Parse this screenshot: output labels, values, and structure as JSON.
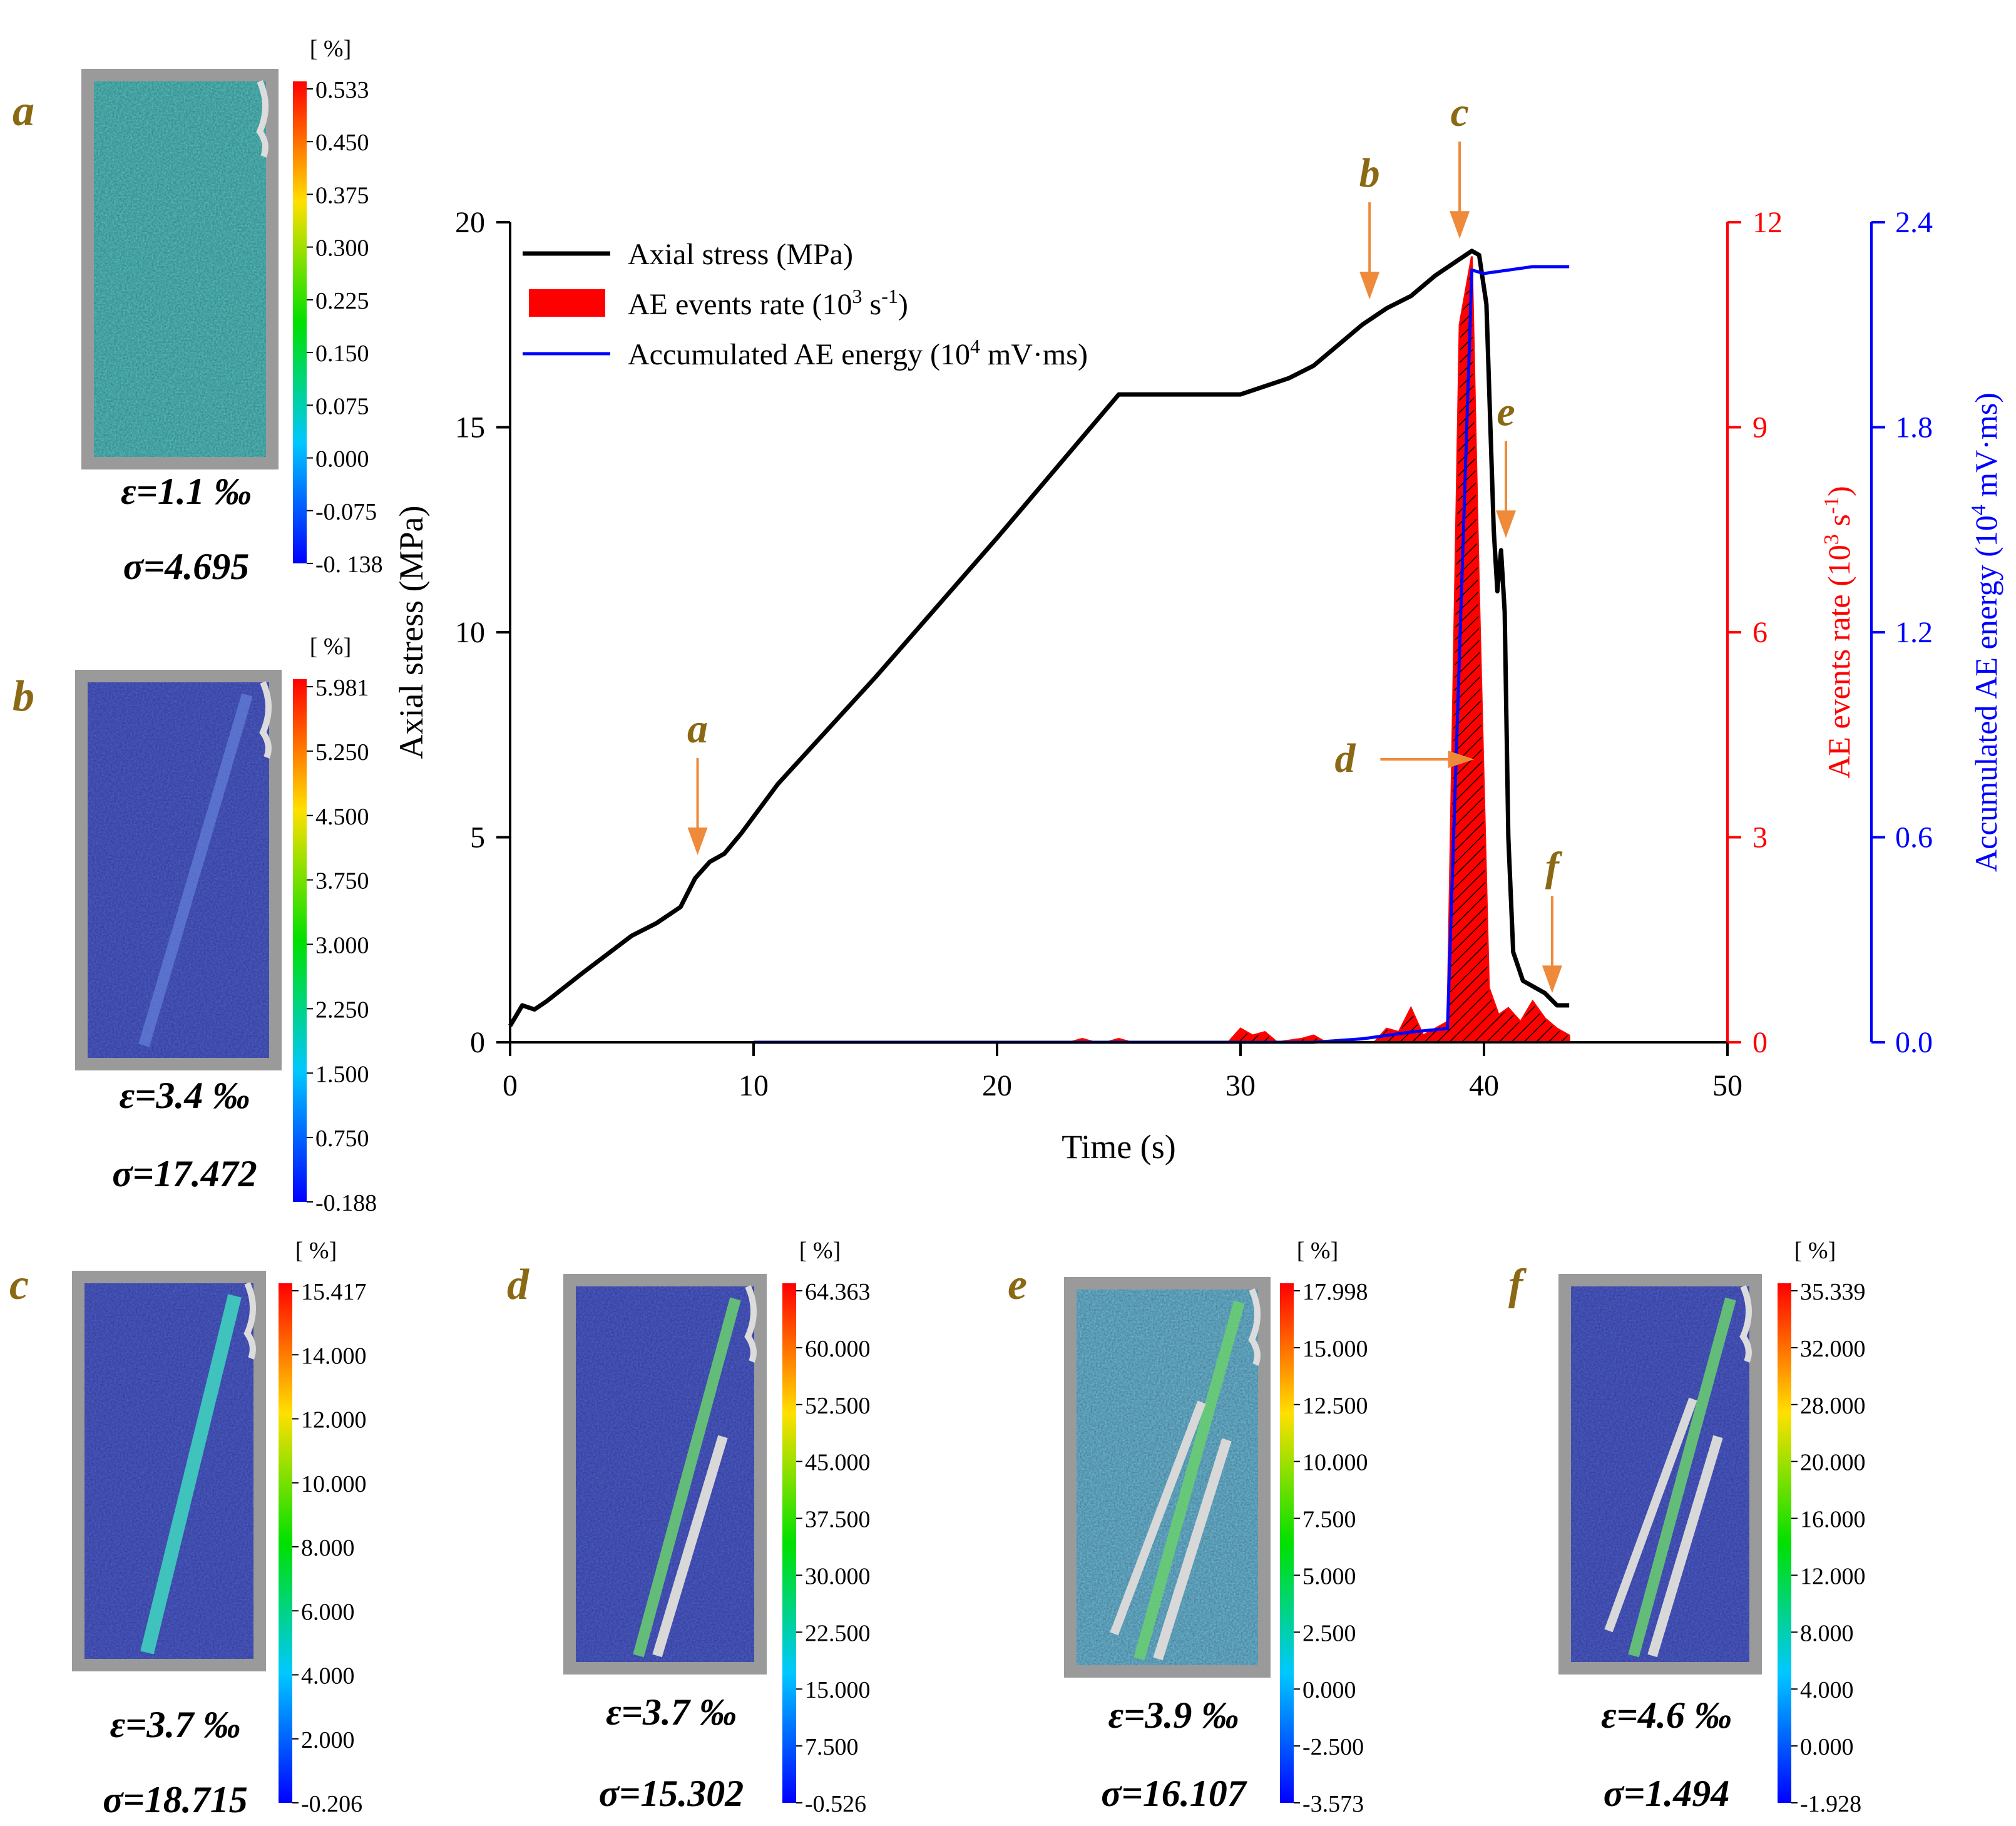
{
  "chart_data": {
    "type": "line",
    "title": "",
    "xlabel": "Time (s)",
    "ylabel": "Axial stress (MPa)",
    "y2label_prefix": "AE events rate (10",
    "y2label_sup1": "3",
    "y2label_mid": " s",
    "y2label_sup2": "-1",
    "y2label_suffix": ")",
    "y3label_prefix": "Accumulated AE energy (10",
    "y3label_sup": "4",
    "y3label_suffix": " mV·ms)",
    "xlim": [
      0,
      50
    ],
    "ylim": [
      0,
      20
    ],
    "y2lim": [
      0,
      12
    ],
    "y3lim": [
      0,
      2.4
    ],
    "xticks": [
      "0",
      "10",
      "20",
      "30",
      "40",
      "50"
    ],
    "yticks": [
      "0",
      "5",
      "10",
      "15",
      "20"
    ],
    "y2ticks": [
      "0",
      "3",
      "6",
      "9",
      "12"
    ],
    "y3ticks": [
      "0.0",
      "0.6",
      "1.2",
      "1.8",
      "2.4"
    ],
    "legend": [
      {
        "label": "Axial stress (MPa)",
        "color": "#000000"
      },
      {
        "label_prefix": "AE events rate (10",
        "sup1": "3",
        "mid": " s",
        "sup2": "-1",
        "suffix": ")",
        "color": "#ff0000"
      },
      {
        "label_prefix": "Accumulated AE energy (10",
        "sup": "4",
        "suffix": " mV·ms)",
        "color": "#0000ff"
      }
    ],
    "series": [
      {
        "name": "Axial stress",
        "axis": "left",
        "color": "#000000",
        "x": [
          0,
          0.5,
          1,
          1.5,
          3,
          5,
          6,
          7,
          7.6,
          8.2,
          8.8,
          9.5,
          11,
          15,
          20,
          25,
          30,
          32,
          33,
          35,
          36,
          37,
          38,
          39,
          39.5,
          39.8,
          40.1,
          40.4,
          40.55,
          40.7,
          40.85,
          41.0,
          41.2,
          41.6,
          42.5,
          43.0,
          43.5
        ],
        "y": [
          0.4,
          0.9,
          0.8,
          1.0,
          1.7,
          2.6,
          2.9,
          3.3,
          4.0,
          4.4,
          4.6,
          5.1,
          6.3,
          8.9,
          12.3,
          15.8,
          15.8,
          16.2,
          16.5,
          17.5,
          17.9,
          18.2,
          18.7,
          19.1,
          19.3,
          19.2,
          18.0,
          12.5,
          11.0,
          12.0,
          10.5,
          5.0,
          2.2,
          1.5,
          1.2,
          0.9,
          0.9
        ]
      },
      {
        "name": "AE events rate",
        "axis": "right1",
        "color": "#ff0000",
        "x": [
          0,
          23,
          23.5,
          24,
          24.5,
          25,
          25.5,
          26,
          29.5,
          30,
          30.5,
          31,
          31.5,
          32.5,
          33,
          33.5,
          35.5,
          36,
          36.5,
          37,
          37.5,
          38.5,
          39.0,
          39.5,
          39.8,
          40.2,
          40.6,
          41.0,
          41.5,
          42.0,
          42.5,
          43.0,
          43.5
        ],
        "y": [
          0,
          0,
          0.05,
          0,
          0,
          0.05,
          0,
          0,
          0,
          0.2,
          0.1,
          0.15,
          0,
          0.05,
          0.1,
          0,
          0,
          0.2,
          0.15,
          0.5,
          0.1,
          0.3,
          10.5,
          11.5,
          6.5,
          0.8,
          0.4,
          0.5,
          0.3,
          0.6,
          0.35,
          0.2,
          0.1
        ]
      },
      {
        "name": "Accumulated AE energy",
        "axis": "right2",
        "color": "#0000ff",
        "x": [
          10,
          33,
          35,
          36,
          37,
          38.5,
          39.0,
          39.5,
          40.0,
          41.0,
          42.0,
          43.5
        ],
        "y": [
          0.0,
          0.0,
          0.01,
          0.02,
          0.03,
          0.04,
          1.15,
          2.26,
          2.25,
          2.26,
          2.27,
          2.27
        ]
      }
    ],
    "annotations": [
      {
        "label": "a",
        "x": 7.7,
        "stage": "a"
      },
      {
        "label": "b",
        "x": 35.3,
        "stage": "b"
      },
      {
        "label": "c",
        "x": 39.0,
        "stage": "c"
      },
      {
        "label": "d",
        "x": 39.6,
        "stage": "d"
      },
      {
        "label": "e",
        "x": 40.9,
        "stage": "e"
      },
      {
        "label": "f",
        "x": 42.8,
        "stage": "f"
      }
    ]
  },
  "panels": [
    {
      "id": "a",
      "label": "a",
      "eps": "ε=1.1 ‰",
      "sigma": "σ=4.695",
      "unit": "[ %]",
      "ticks": [
        "0.533",
        "0.450",
        "0.375",
        "0.300",
        "0.225",
        "0.150",
        "0.075",
        "0.000",
        "-0.075",
        "-0. 138"
      ],
      "overlay": "#56c8c8"
    },
    {
      "id": "b",
      "label": "b",
      "eps": "ε=3.4 ‰",
      "sigma": "σ=17.472",
      "unit": "[ %]",
      "ticks": [
        "5.981",
        "5.250",
        "4.500",
        "3.750",
        "3.000",
        "2.250",
        "1.500",
        "0.750",
        "-0.188"
      ],
      "overlay": "#5060d8"
    },
    {
      "id": "c",
      "label": "c",
      "eps": "ε=3.7 ‰",
      "sigma": "σ=18.715",
      "unit": "[ %]",
      "ticks": [
        "15.417",
        "14.000",
        "12.000",
        "10.000",
        "8.000",
        "6.000",
        "4.000",
        "2.000",
        "-0.206"
      ],
      "overlay": "#5060d8"
    },
    {
      "id": "d",
      "label": "d",
      "eps": "ε=3.7 ‰",
      "sigma": "σ=15.302",
      "unit": "[ %]",
      "ticks": [
        "64.363",
        "60.000",
        "52.500",
        "45.000",
        "37.500",
        "30.000",
        "22.500",
        "15.000",
        "7.500",
        "-0.526"
      ],
      "overlay": "#5060d8"
    },
    {
      "id": "e",
      "label": "e",
      "eps": "ε=3.9 ‰",
      "sigma": "σ=16.107",
      "unit": "[ %]",
      "ticks": [
        "17.998",
        "15.000",
        "12.500",
        "10.000",
        "7.500",
        "5.000",
        "2.500",
        "0.000",
        "-2.500",
        "-3.573"
      ],
      "overlay": "#70c0e0"
    },
    {
      "id": "f",
      "label": "f",
      "eps": "ε=4.6 ‰",
      "sigma": "σ=1.494",
      "unit": "[ %]",
      "ticks": [
        "35.339",
        "32.000",
        "28.000",
        "20.000",
        "16.000",
        "12.000",
        "8.000",
        "4.000",
        "0.000",
        "-1.928"
      ],
      "overlay": "#5060d8"
    }
  ]
}
